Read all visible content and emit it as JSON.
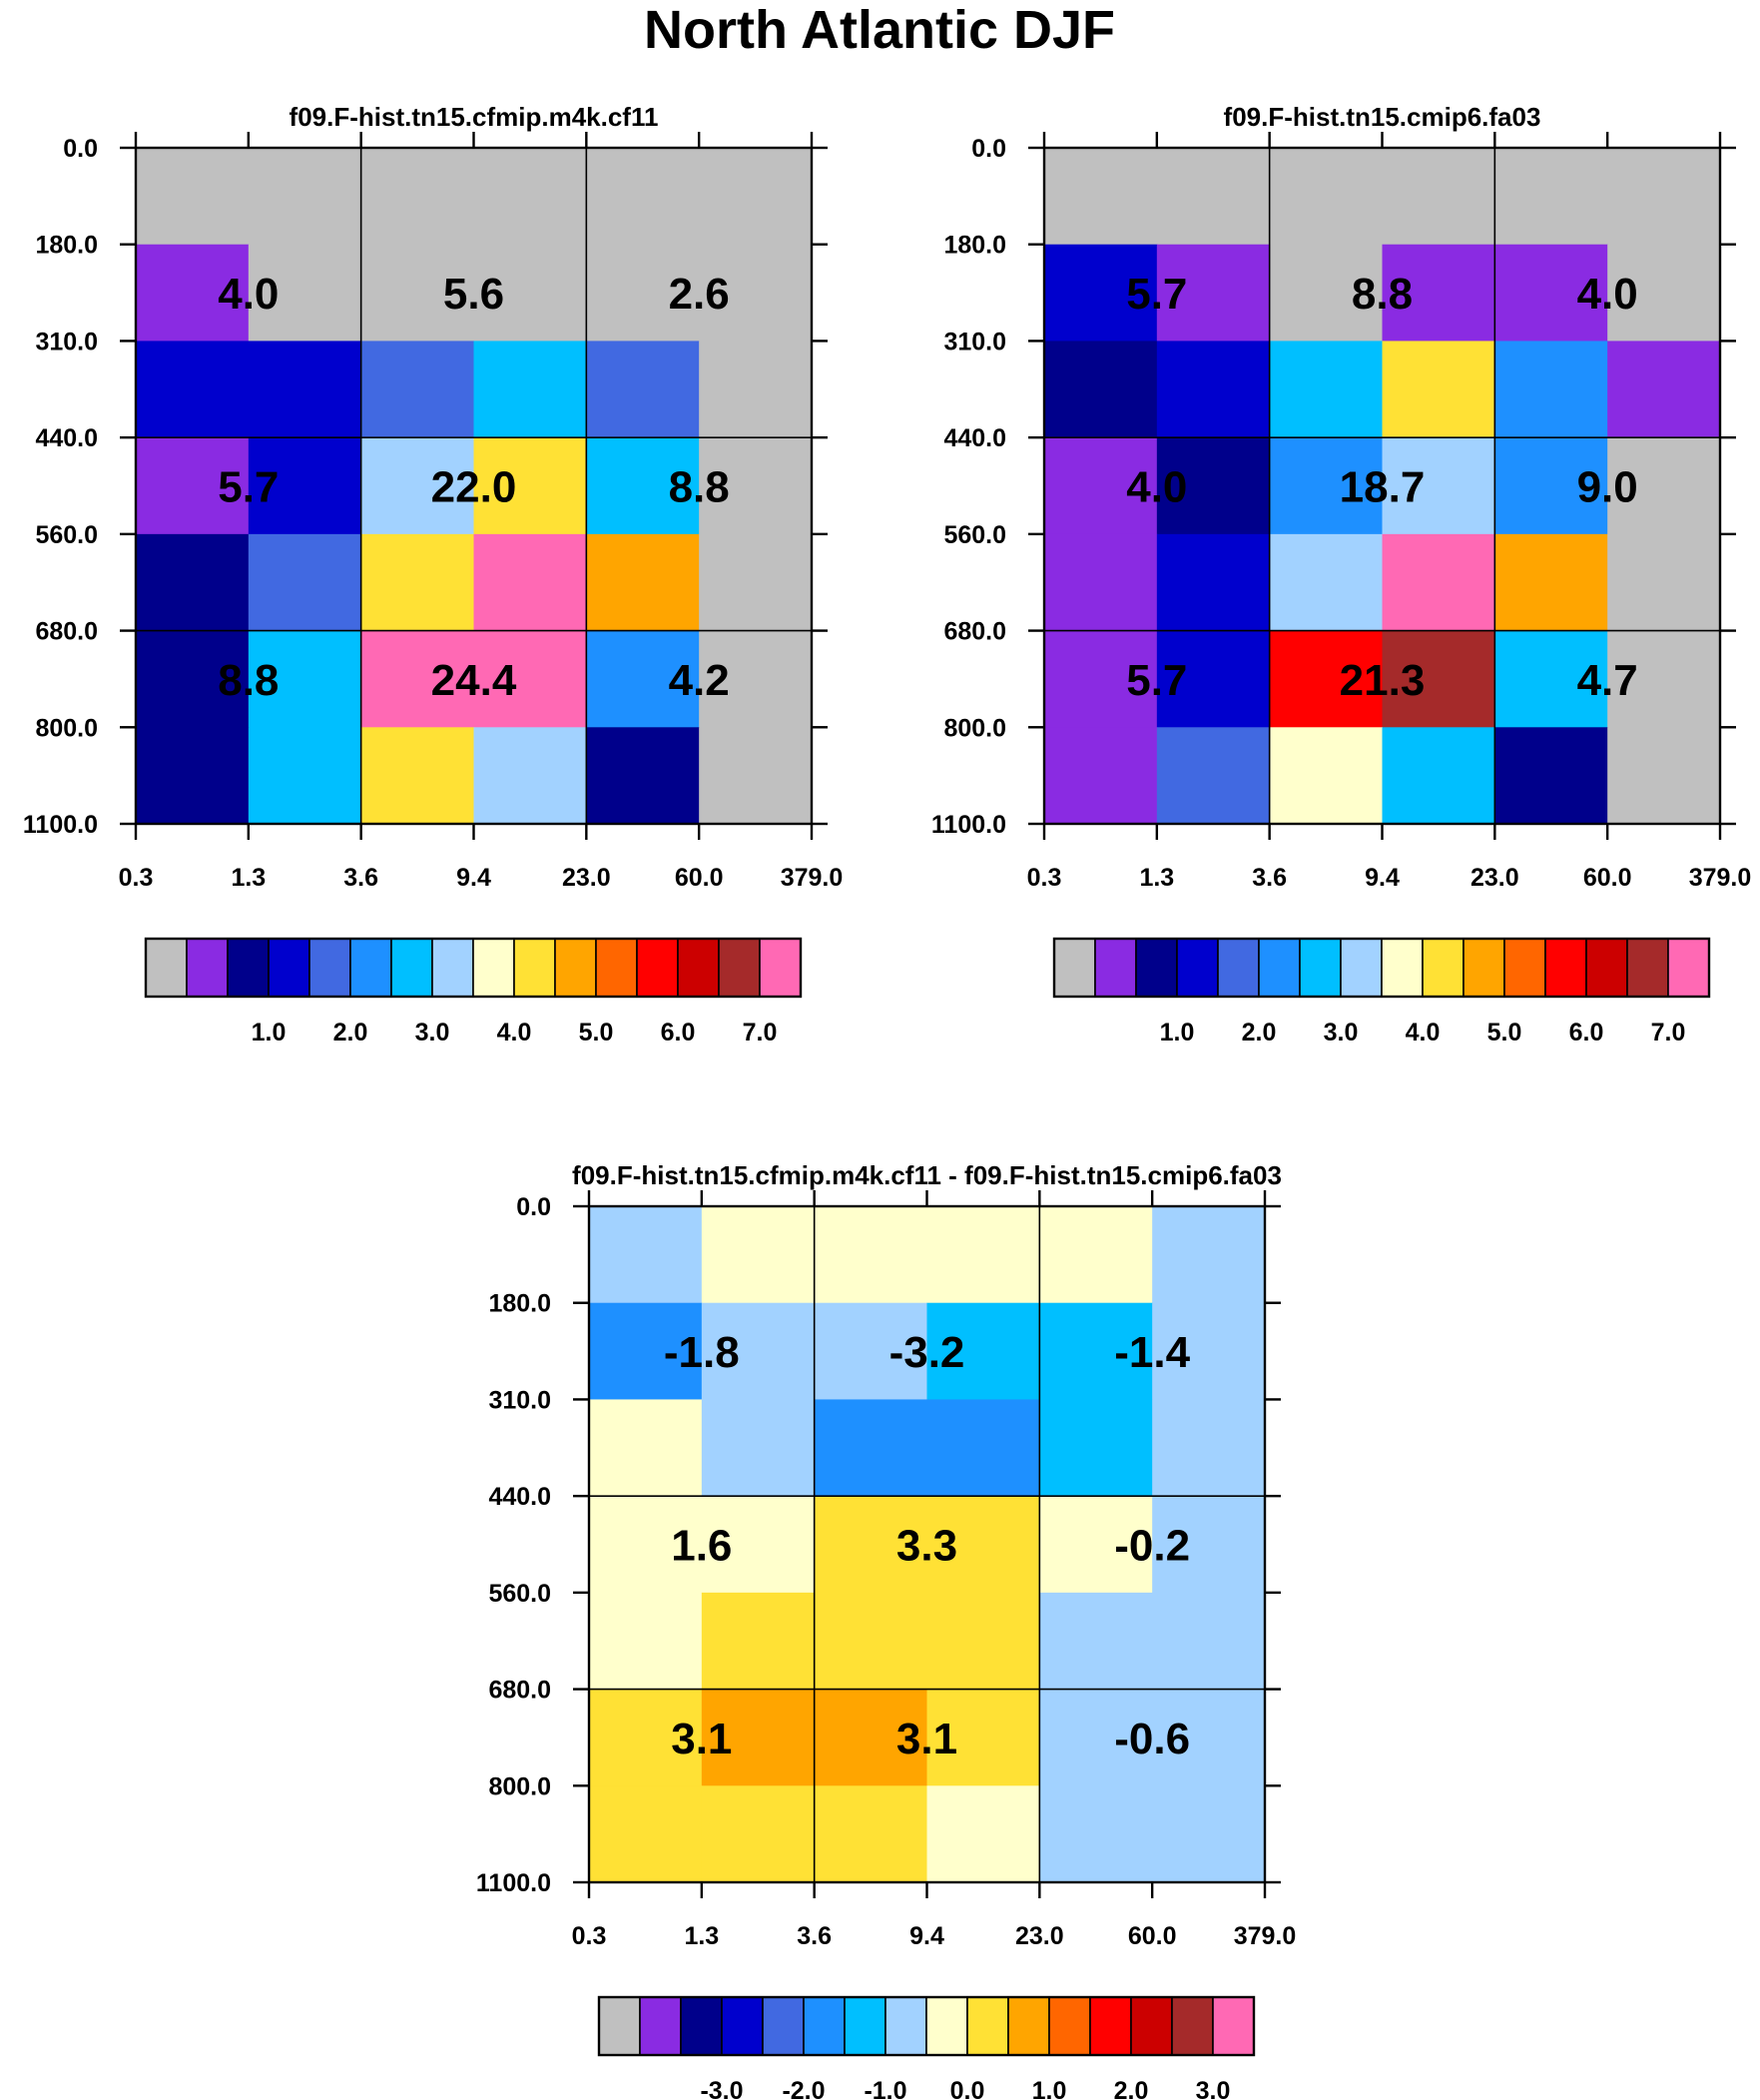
{
  "title": "North Atlantic DJF",
  "y_tick_labels": [
    "0.0",
    "180.0",
    "310.0",
    "440.0",
    "560.0",
    "680.0",
    "800.0",
    "1100.0"
  ],
  "x_tick_labels": [
    "0.3",
    "1.3",
    "3.6",
    "9.4",
    "23.0",
    "60.0",
    "379.0"
  ],
  "colorbar_abs": {
    "colors": [
      "#c0c0c0",
      "#8a2be2",
      "#00008b",
      "#0000cd",
      "#4169e1",
      "#1e90ff",
      "#00bfff",
      "#a2d2ff",
      "#ffffcc",
      "#ffe135",
      "#ffa500",
      "#ff6600",
      "#ff0000",
      "#cc0000",
      "#a52a2a",
      "#ff69b4"
    ],
    "labels": [
      "1.0",
      "2.0",
      "3.0",
      "4.0",
      "5.0",
      "6.0",
      "7.0"
    ]
  },
  "colorbar_diff": {
    "colors": [
      "#c0c0c0",
      "#8a2be2",
      "#00008b",
      "#0000cd",
      "#4169e1",
      "#1e90ff",
      "#00bfff",
      "#a2d2ff",
      "#ffffcc",
      "#ffe135",
      "#ffa500",
      "#ff6600",
      "#ff0000",
      "#cc0000",
      "#a52a2a",
      "#ff69b4"
    ],
    "labels": [
      "-3.0",
      "-2.0",
      "-1.0",
      "0.0",
      "1.0",
      "2.0",
      "3.0"
    ]
  },
  "chart_data": [
    {
      "type": "heatmap",
      "title": "f09.F-hist.tn15.cfmip.m4k.cf11",
      "x_bin_edges": [
        0.3,
        1.3,
        3.6,
        9.4,
        23.0,
        60.0,
        379.0
      ],
      "y_bin_edges": [
        0.0,
        180.0,
        310.0,
        440.0,
        560.0,
        680.0,
        800.0,
        1100.0
      ],
      "y_axis_inverted": true,
      "cell_class_rows": [
        [
          0,
          0,
          0,
          0,
          0,
          0
        ],
        [
          1,
          0,
          0,
          0,
          0,
          0
        ],
        [
          3,
          3,
          4,
          6,
          4,
          0
        ],
        [
          1,
          3,
          7,
          9,
          6,
          0
        ],
        [
          2,
          4,
          9,
          15,
          10,
          0
        ],
        [
          2,
          6,
          15,
          15,
          5,
          0
        ],
        [
          2,
          6,
          9,
          7,
          2,
          0
        ]
      ],
      "group_values": [
        [
          4.0,
          5.6,
          2.6
        ],
        [
          5.7,
          22.0,
          8.8
        ],
        [
          8.8,
          24.4,
          4.2
        ]
      ]
    },
    {
      "type": "heatmap",
      "title": "f09.F-hist.tn15.cmip6.fa03",
      "x_bin_edges": [
        0.3,
        1.3,
        3.6,
        9.4,
        23.0,
        60.0,
        379.0
      ],
      "y_bin_edges": [
        0.0,
        180.0,
        310.0,
        440.0,
        560.0,
        680.0,
        800.0,
        1100.0
      ],
      "y_axis_inverted": true,
      "cell_class_rows": [
        [
          0,
          0,
          0,
          0,
          0,
          0
        ],
        [
          3,
          1,
          0,
          1,
          1,
          0
        ],
        [
          2,
          3,
          6,
          9,
          5,
          1
        ],
        [
          1,
          2,
          5,
          7,
          5,
          0
        ],
        [
          1,
          3,
          7,
          15,
          10,
          0
        ],
        [
          1,
          3,
          12,
          14,
          6,
          0
        ],
        [
          1,
          4,
          8,
          6,
          2,
          0
        ]
      ],
      "group_values": [
        [
          5.7,
          8.8,
          4.0
        ],
        [
          4.0,
          18.7,
          9.0
        ],
        [
          5.7,
          21.3,
          4.7
        ]
      ]
    },
    {
      "type": "heatmap",
      "title": "f09.F-hist.tn15.cfmip.m4k.cf11 - f09.F-hist.tn15.cmip6.fa03",
      "x_bin_edges": [
        0.3,
        1.3,
        3.6,
        9.4,
        23.0,
        60.0,
        379.0
      ],
      "y_bin_edges": [
        0.0,
        180.0,
        310.0,
        440.0,
        560.0,
        680.0,
        800.0,
        1100.0
      ],
      "y_axis_inverted": true,
      "cell_class_rows": [
        [
          7,
          8,
          8,
          8,
          8,
          7
        ],
        [
          5,
          7,
          7,
          6,
          6,
          7
        ],
        [
          8,
          7,
          5,
          5,
          6,
          7
        ],
        [
          8,
          8,
          9,
          9,
          8,
          7
        ],
        [
          8,
          9,
          9,
          9,
          7,
          7
        ],
        [
          9,
          10,
          10,
          9,
          7,
          7
        ],
        [
          9,
          9,
          9,
          8,
          7,
          7
        ]
      ],
      "group_values": [
        [
          -1.8,
          -3.2,
          -1.4
        ],
        [
          1.6,
          3.3,
          -0.2
        ],
        [
          3.1,
          3.1,
          -0.6
        ]
      ]
    }
  ]
}
